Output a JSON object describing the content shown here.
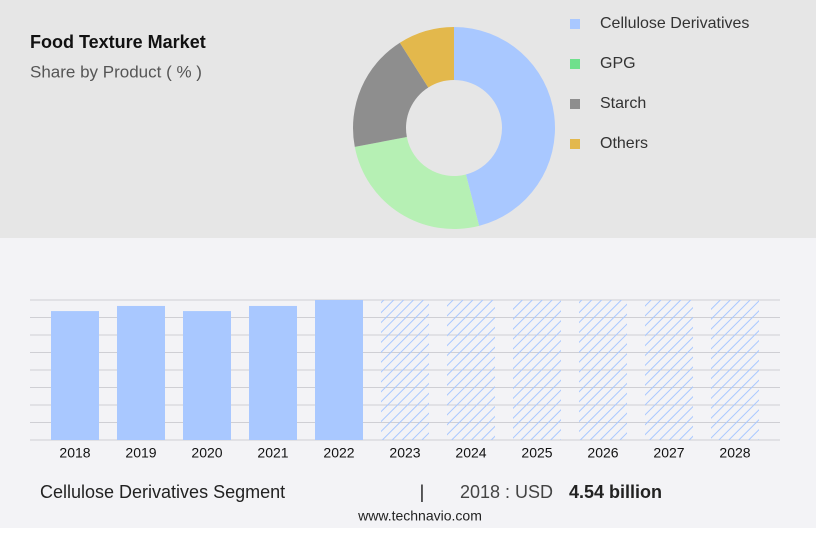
{
  "charts": [
    {
      "type": "donut",
      "title": "Food Texture Market",
      "subtitle": "Share by Product ( % )",
      "categories": [
        "Cellulose Derivatives",
        "GPG",
        "Starch",
        "Others"
      ],
      "values": [
        46,
        26,
        19,
        9
      ],
      "colors": [
        "#a9c8ff",
        "#b6f0b4",
        "#8e8e8e",
        "#e3b84c"
      ],
      "legend_colors": [
        "#a9c8ff",
        "#6fe08c",
        "#8e8e8e",
        "#e3b84c"
      ]
    },
    {
      "type": "bar",
      "categories": [
        "2018",
        "2019",
        "2020",
        "2021",
        "2022",
        "2023",
        "2024",
        "2025",
        "2026",
        "2027",
        "2028"
      ],
      "values": [
        4.54,
        4.72,
        4.54,
        4.72,
        4.93,
        null,
        null,
        null,
        null,
        null,
        null
      ],
      "color": "#a9c8ff",
      "ylim": [
        0,
        4.93
      ]
    }
  ],
  "footer": {
    "segment": "Cellulose Derivatives Segment",
    "separator": "|",
    "year": "2018 : USD",
    "value": "4.54 billion",
    "source": "www.technavio.com"
  }
}
